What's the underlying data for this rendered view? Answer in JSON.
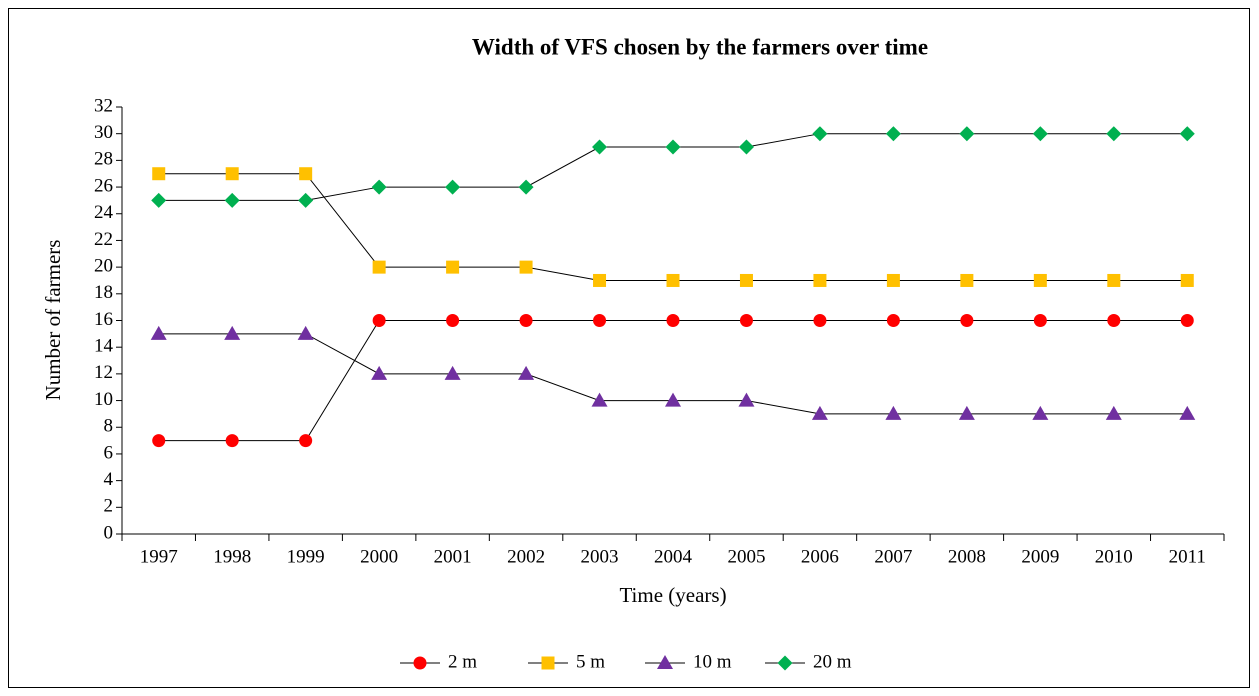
{
  "chart_data": {
    "type": "line",
    "title": "Width of VFS chosen by the farmers over time",
    "x_label": "Time (years)",
    "y_label": "Number of farmers",
    "categories": [
      "1997",
      "1998",
      "1999",
      "2000",
      "2001",
      "2002",
      "2003",
      "2004",
      "2005",
      "2006",
      "2007",
      "2008",
      "2009",
      "2010",
      "2011"
    ],
    "series": [
      {
        "name": "2 m",
        "color": "#ff0000",
        "marker": "circle",
        "values": [
          7,
          7,
          7,
          16,
          16,
          16,
          16,
          16,
          16,
          16,
          16,
          16,
          16,
          16,
          16
        ]
      },
      {
        "name": "5 m",
        "color": "#ffc000",
        "marker": "square",
        "values": [
          27,
          27,
          27,
          20,
          20,
          20,
          19,
          19,
          19,
          19,
          19,
          19,
          19,
          19,
          19
        ]
      },
      {
        "name": "10 m",
        "color": "#7030a0",
        "marker": "triangle",
        "values": [
          15,
          15,
          15,
          12,
          12,
          12,
          10,
          10,
          10,
          9,
          9,
          9,
          9,
          9,
          9
        ]
      },
      {
        "name": "20 m",
        "color": "#00b050",
        "marker": "diamond",
        "values": [
          25,
          25,
          25,
          26,
          26,
          26,
          29,
          29,
          29,
          30,
          30,
          30,
          30,
          30,
          30
        ]
      }
    ],
    "ylim": [
      0,
      32
    ],
    "yticks": [
      0,
      2,
      4,
      6,
      8,
      10,
      12,
      14,
      16,
      18,
      20,
      22,
      24,
      26,
      28,
      30,
      32
    ],
    "grid": false,
    "legend": "bottom"
  }
}
